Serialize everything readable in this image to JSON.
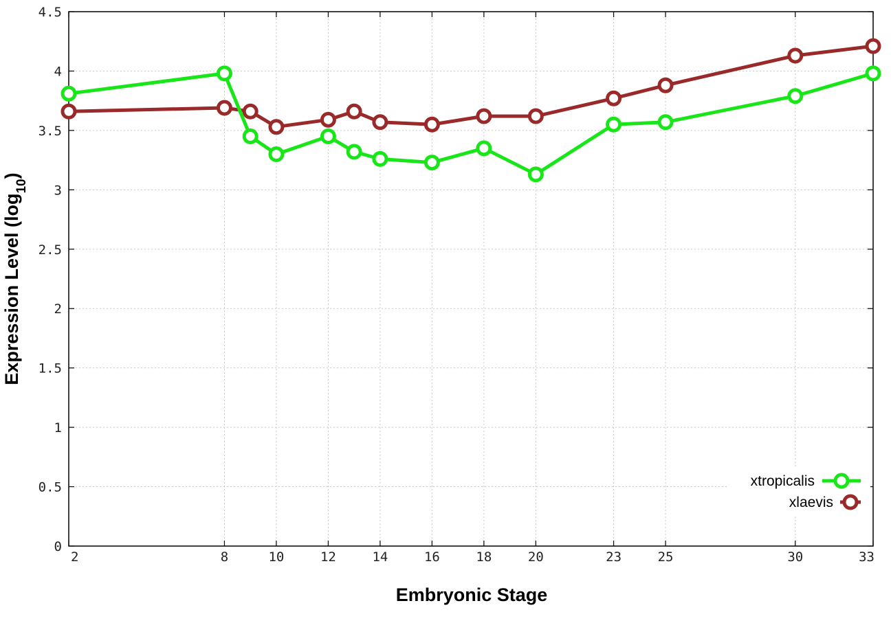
{
  "chart_data": {
    "type": "line",
    "xlabel": "Embryonic Stage",
    "ylabel_main": "Expression Level (log",
    "ylabel_sub": "10",
    "ylabel_close": ")",
    "x_ticks": [
      2,
      8,
      10,
      12,
      14,
      16,
      18,
      20,
      23,
      25,
      30,
      33
    ],
    "x_tick_labels": [
      "2",
      "8",
      "10",
      "12",
      "14",
      "16",
      "18",
      "20",
      "23",
      "25",
      "30",
      "33"
    ],
    "y_ticks": [
      0,
      0.5,
      1,
      1.5,
      2,
      2.5,
      3,
      3.5,
      4,
      4.5
    ],
    "y_tick_labels": [
      "0",
      "0.5",
      "1",
      "1.5",
      "2",
      "2.5",
      "3",
      "3.5",
      "4",
      "4.5"
    ],
    "xlim": [
      2,
      33
    ],
    "ylim": [
      0,
      4.5
    ],
    "grid": true,
    "legend_position": "bottom-right",
    "x": [
      2,
      8,
      9,
      10,
      12,
      13,
      14,
      16,
      18,
      20,
      23,
      25,
      30,
      33
    ],
    "series": [
      {
        "name": "xtropicalis",
        "color": "#19e619",
        "values": [
          3.81,
          3.98,
          3.45,
          3.3,
          3.45,
          3.32,
          3.26,
          3.23,
          3.35,
          3.13,
          3.55,
          3.57,
          3.79,
          3.98
        ]
      },
      {
        "name": "xlaevis",
        "color": "#9a2a2a",
        "values": [
          3.66,
          3.69,
          3.66,
          3.53,
          3.59,
          3.66,
          3.57,
          3.55,
          3.62,
          3.62,
          3.77,
          3.88,
          4.13,
          4.21
        ]
      }
    ]
  }
}
